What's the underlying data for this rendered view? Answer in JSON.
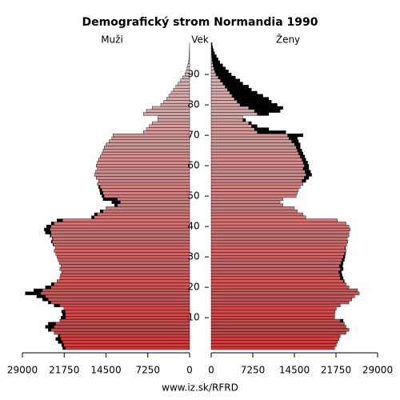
{
  "chart_data": {
    "type": "pyramid",
    "title": "Demografický strom Normandia 1990",
    "y_label": "Vek",
    "source": "www.iz.sk/RFRD",
    "categories": [
      null,
      null,
      null,
      null,
      null,
      null,
      null,
      null,
      null,
      null,
      "10",
      null,
      null,
      null,
      null,
      null,
      null,
      null,
      null,
      null,
      "20",
      null,
      null,
      null,
      null,
      null,
      null,
      null,
      null,
      null,
      "30",
      null,
      null,
      null,
      null,
      null,
      null,
      null,
      null,
      null,
      "40",
      null,
      null,
      null,
      null,
      null,
      null,
      null,
      null,
      null,
      "50",
      null,
      null,
      null,
      null,
      null,
      null,
      null,
      null,
      null,
      "60",
      null,
      null,
      null,
      null,
      null,
      null,
      null,
      null,
      null,
      "70",
      null,
      null,
      null,
      null,
      null,
      null,
      null,
      null,
      null,
      "80",
      null,
      null,
      null,
      null,
      null,
      null,
      null,
      null,
      null,
      "90",
      null,
      null,
      null,
      null,
      null,
      null,
      null,
      null,
      null,
      null
    ],
    "series": [
      {
        "name": "Muži",
        "values": [
          22000,
          22200,
          22800,
          23200,
          22800,
          23500,
          24500,
          25000,
          24500,
          22500,
          22300,
          22000,
          22200,
          21800,
          23500,
          24500,
          25500,
          26500,
          28500,
          27000,
          25000,
          24000,
          23000,
          22500,
          22400,
          22200,
          22500,
          22300,
          22600,
          22800,
          23000,
          23200,
          23500,
          23300,
          23700,
          24000,
          23800,
          24200,
          25000,
          25200,
          24800,
          24000,
          23000,
          17000,
          16500,
          15500,
          14500,
          13000,
          13500,
          15000,
          15200,
          15500,
          15600,
          15800,
          16000,
          15800,
          16200,
          16500,
          16300,
          16000,
          16200,
          16000,
          15800,
          15500,
          15200,
          15000,
          14800,
          14500,
          14000,
          13500,
          13300,
          8000,
          7500,
          7000,
          6500,
          5500,
          5500,
          8000,
          7500,
          6500,
          5000,
          4500,
          4000,
          3600,
          3200,
          2800,
          2400,
          2000,
          1600,
          1200,
          800,
          600,
          450,
          300,
          200,
          130,
          80,
          50,
          30,
          15,
          8
        ]
      },
      {
        "name": "Ženy",
        "values": [
          21500,
          21800,
          22000,
          22300,
          22500,
          23500,
          24000,
          23500,
          23200,
          23000,
          21500,
          21500,
          21600,
          21800,
          22500,
          24000,
          24500,
          25000,
          25800,
          25500,
          24000,
          23500,
          23200,
          23000,
          22800,
          22700,
          23000,
          22900,
          23000,
          23200,
          23300,
          23400,
          23500,
          23400,
          23600,
          23800,
          23700,
          24000,
          24000,
          24200,
          24000,
          23500,
          22000,
          16500,
          16000,
          15000,
          14500,
          12500,
          12000,
          12500,
          14800,
          15000,
          15200,
          15500,
          16000,
          16500,
          17000,
          17500,
          17300,
          17000,
          17000,
          16800,
          16500,
          16300,
          16000,
          15800,
          15500,
          15500,
          15200,
          15000,
          16000,
          13000,
          10000,
          8000,
          7000,
          6000,
          5500,
          10000,
          12000,
          12500,
          11500,
          10500,
          10000,
          9000,
          8000,
          7000,
          6500,
          5500,
          5000,
          4200,
          3500,
          3000,
          2500,
          2000,
          1500,
          1200,
          900,
          600,
          400,
          250,
          150
        ]
      }
    ],
    "xlim": [
      0,
      29000
    ],
    "xticks": [
      29000,
      21750,
      14500,
      7250,
      0
    ],
    "bar_color_young": "#c83c3c",
    "bar_color_old": "#d8c2c2",
    "excess_color": "#000000"
  }
}
